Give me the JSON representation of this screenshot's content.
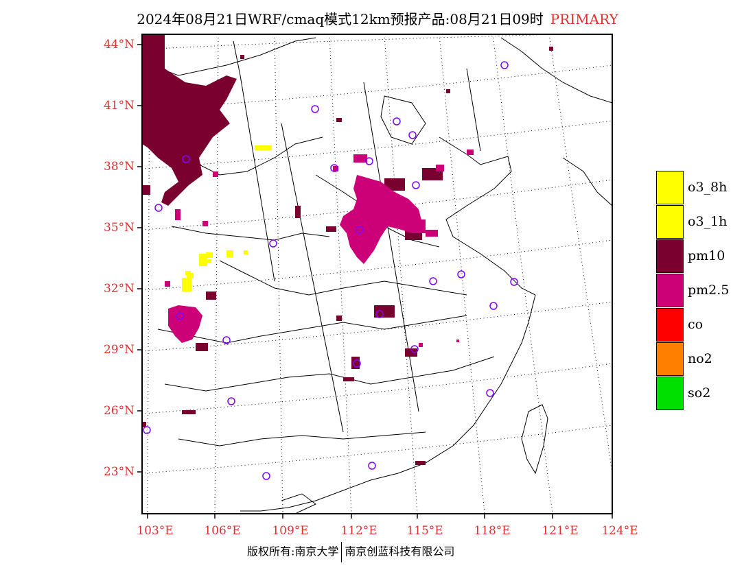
{
  "title": "2024年08月21日WRF/cmaq模式12km预报产品:08月21日09时",
  "title_tag": "PRIMARY",
  "lat_labels": [
    "44°N",
    "41°N",
    "38°N",
    "35°N",
    "32°N",
    "29°N",
    "26°N",
    "23°N"
  ],
  "lon_labels": [
    "103°E",
    "106°E",
    "109°E",
    "112°E",
    "115°E",
    "118°E",
    "121°E",
    "124°E"
  ],
  "legend": [
    {
      "label": "o3_8h",
      "color": "#ffff00"
    },
    {
      "label": "o3_1h",
      "color": "#ffff00"
    },
    {
      "label": "pm10",
      "color": "#7a0030"
    },
    {
      "label": "pm2.5",
      "color": "#cc0077"
    },
    {
      "label": "co",
      "color": "#ff0000"
    },
    {
      "label": "no2",
      "color": "#ff8000"
    },
    {
      "label": "so2",
      "color": "#00e000"
    }
  ],
  "footer_left": "版权所有:南京大学",
  "footer_right": "南京创蓝科技有限公司"
}
